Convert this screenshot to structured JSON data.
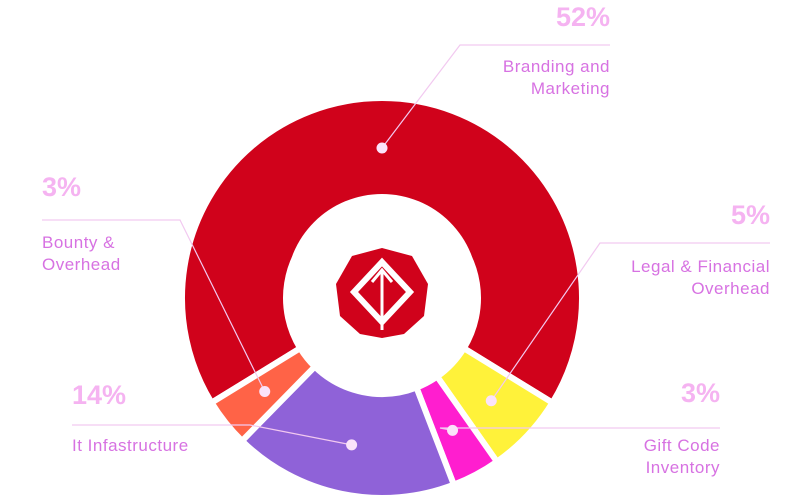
{
  "chart_data": {
    "type": "donut",
    "categories": [
      "Branding and Marketing",
      "Legal & Financial Overhead",
      "Gift Code Inventory",
      "It Infastructure",
      "Bounty & Overhead"
    ],
    "values": [
      52,
      5,
      3,
      14,
      3
    ],
    "value_labels": [
      "52%",
      "5%",
      "3%",
      "14%",
      "3%"
    ],
    "colors": [
      "#d0021b",
      "#fff23a",
      "#ff1ecf",
      "#8f62d8",
      "#ff6347"
    ]
  }
}
